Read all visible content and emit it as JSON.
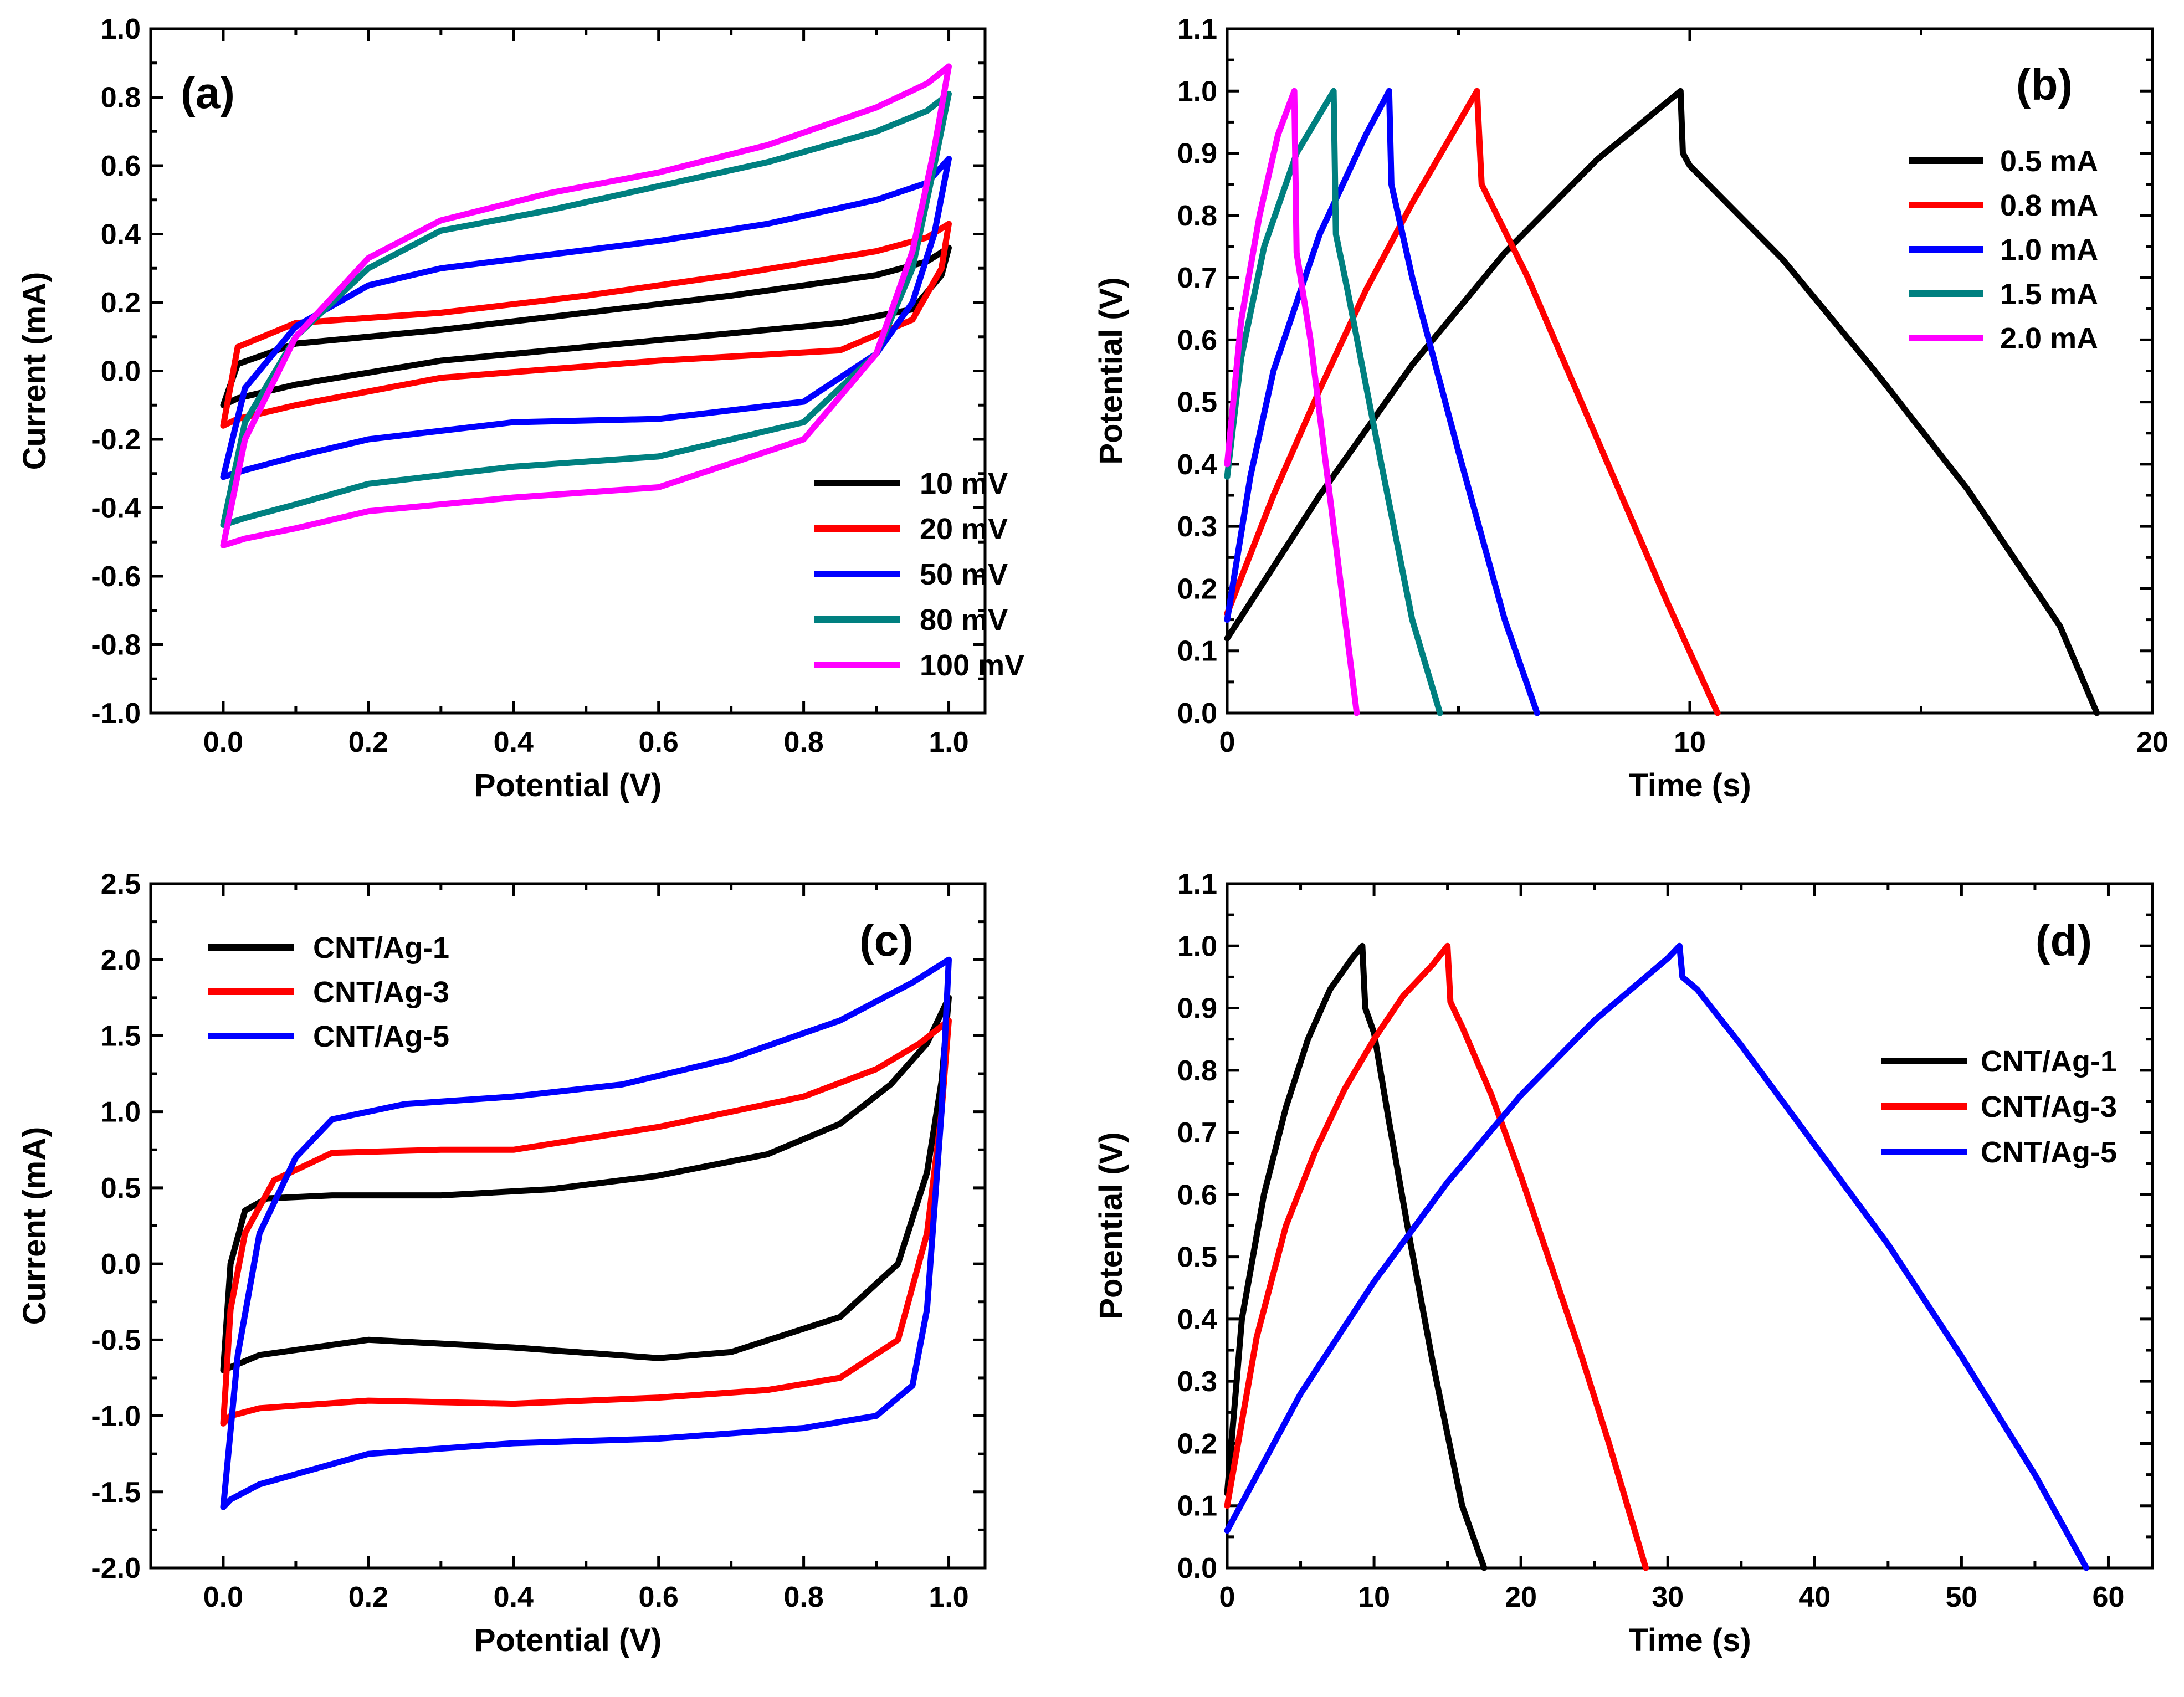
{
  "chart_data": [
    {
      "panel": "(a)",
      "type": "line",
      "xlabel": "Potential (V)",
      "ylabel": "Current (mA)",
      "xlim": [
        -0.1,
        1.05
      ],
      "ylim": [
        -1.0,
        1.0
      ],
      "xticks": [
        0.0,
        0.2,
        0.4,
        0.6,
        0.8,
        1.0
      ],
      "xtick_labels": [
        "0.0",
        "0.2",
        "0.4",
        "0.6",
        "0.8",
        "1.0"
      ],
      "yticks": [
        -1.0,
        -0.8,
        -0.6,
        -0.4,
        -0.2,
        0.0,
        0.2,
        0.4,
        0.6,
        0.8,
        1.0
      ],
      "ytick_labels": [
        "-1.0",
        "-0.8",
        "-0.6",
        "-0.4",
        "-0.2",
        "0.0",
        "0.2",
        "0.4",
        "0.6",
        "0.8",
        "1.0"
      ],
      "legend_position": "bottom-right",
      "series": [
        {
          "name": "10 mV",
          "color": "#000000",
          "x": [
            0.0,
            0.02,
            0.1,
            0.3,
            0.5,
            0.7,
            0.9,
            0.97,
            1.0,
            0.99,
            0.95,
            0.85,
            0.6,
            0.3,
            0.1,
            0.02,
            0.0
          ],
          "y": [
            -0.1,
            0.02,
            0.08,
            0.12,
            0.17,
            0.22,
            0.28,
            0.32,
            0.36,
            0.28,
            0.18,
            0.14,
            0.09,
            0.03,
            -0.04,
            -0.08,
            -0.1
          ]
        },
        {
          "name": "20 mV",
          "color": "#ff0000",
          "x": [
            0.0,
            0.02,
            0.1,
            0.3,
            0.5,
            0.7,
            0.9,
            0.97,
            1.0,
            0.99,
            0.95,
            0.85,
            0.6,
            0.3,
            0.1,
            0.02,
            0.0
          ],
          "y": [
            -0.16,
            0.07,
            0.14,
            0.17,
            0.22,
            0.28,
            0.35,
            0.39,
            0.43,
            0.3,
            0.15,
            0.06,
            0.03,
            -0.02,
            -0.1,
            -0.14,
            -0.16
          ]
        },
        {
          "name": "50 mV",
          "color": "#0000ff",
          "x": [
            0.0,
            0.03,
            0.1,
            0.2,
            0.3,
            0.45,
            0.6,
            0.75,
            0.9,
            0.97,
            1.0,
            0.98,
            0.95,
            0.9,
            0.8,
            0.6,
            0.4,
            0.2,
            0.1,
            0.03,
            0.0
          ],
          "y": [
            -0.31,
            -0.05,
            0.13,
            0.25,
            0.3,
            0.34,
            0.38,
            0.43,
            0.5,
            0.55,
            0.62,
            0.4,
            0.2,
            0.05,
            -0.09,
            -0.14,
            -0.15,
            -0.2,
            -0.25,
            -0.29,
            -0.31
          ]
        },
        {
          "name": "80 mV",
          "color": "#008080",
          "x": [
            0.0,
            0.03,
            0.1,
            0.2,
            0.3,
            0.45,
            0.6,
            0.75,
            0.9,
            0.97,
            1.0,
            0.98,
            0.95,
            0.9,
            0.8,
            0.6,
            0.4,
            0.2,
            0.1,
            0.03,
            0.0
          ],
          "y": [
            -0.45,
            -0.15,
            0.1,
            0.3,
            0.41,
            0.47,
            0.54,
            0.61,
            0.7,
            0.76,
            0.81,
            0.6,
            0.3,
            0.05,
            -0.15,
            -0.25,
            -0.28,
            -0.33,
            -0.39,
            -0.43,
            -0.45
          ]
        },
        {
          "name": "100 mV",
          "color": "#ff00ff",
          "x": [
            0.0,
            0.03,
            0.1,
            0.2,
            0.3,
            0.45,
            0.6,
            0.75,
            0.9,
            0.97,
            1.0,
            0.98,
            0.95,
            0.9,
            0.8,
            0.6,
            0.4,
            0.2,
            0.1,
            0.03,
            0.0
          ],
          "y": [
            -0.51,
            -0.2,
            0.1,
            0.33,
            0.44,
            0.52,
            0.58,
            0.66,
            0.77,
            0.84,
            0.89,
            0.65,
            0.35,
            0.05,
            -0.2,
            -0.34,
            -0.37,
            -0.41,
            -0.46,
            -0.49,
            -0.51
          ]
        }
      ]
    },
    {
      "panel": "(b)",
      "type": "line",
      "xlabel": "Time (s)",
      "ylabel": "Potential (V)",
      "xlim": [
        0,
        20
      ],
      "ylim": [
        0.0,
        1.1
      ],
      "xticks": [
        0,
        10,
        20
      ],
      "xtick_labels": [
        "0",
        "10",
        "20"
      ],
      "xminor": [
        5,
        15
      ],
      "yticks": [
        0.0,
        0.1,
        0.2,
        0.3,
        0.4,
        0.5,
        0.6,
        0.7,
        0.8,
        0.9,
        1.0,
        1.1
      ],
      "ytick_labels": [
        "0.0",
        "0.1",
        "0.2",
        "0.3",
        "0.4",
        "0.5",
        "0.6",
        "0.7",
        "0.8",
        "0.9",
        "1.0",
        "1.1"
      ],
      "legend_position": "top-right",
      "series": [
        {
          "name": "0.5 mA",
          "color": "#000000",
          "x": [
            0,
            2,
            4,
            6,
            8,
            9.8,
            9.85,
            10.0,
            12,
            14,
            16,
            18,
            18.8
          ],
          "y": [
            0.12,
            0.35,
            0.56,
            0.74,
            0.89,
            1.0,
            0.9,
            0.88,
            0.73,
            0.55,
            0.36,
            0.14,
            0.0
          ]
        },
        {
          "name": "0.8 mA",
          "color": "#ff0000",
          "x": [
            0,
            1,
            2,
            3,
            4,
            5.4,
            5.5,
            6.5,
            8,
            9.5,
            10.6
          ],
          "y": [
            0.16,
            0.35,
            0.52,
            0.68,
            0.82,
            1.0,
            0.85,
            0.7,
            0.44,
            0.18,
            0.0
          ]
        },
        {
          "name": "1.0 mA",
          "color": "#0000ff",
          "x": [
            0,
            0.5,
            1,
            2,
            3,
            3.5,
            3.55,
            4,
            5,
            6,
            6.7
          ],
          "y": [
            0.15,
            0.38,
            0.55,
            0.77,
            0.93,
            1.0,
            0.85,
            0.7,
            0.42,
            0.15,
            0.0
          ]
        },
        {
          "name": "1.5 mA",
          "color": "#008080",
          "x": [
            0,
            0.3,
            0.8,
            1.5,
            2.3,
            2.35,
            2.6,
            3.2,
            4.0,
            4.6
          ],
          "y": [
            0.38,
            0.57,
            0.75,
            0.9,
            1.0,
            0.77,
            0.68,
            0.45,
            0.15,
            0.0
          ]
        },
        {
          "name": "2.0 mA",
          "color": "#ff00ff",
          "x": [
            0,
            0.3,
            0.7,
            1.1,
            1.45,
            1.5,
            1.8,
            2.3,
            2.8
          ],
          "y": [
            0.4,
            0.63,
            0.8,
            0.93,
            1.0,
            0.74,
            0.6,
            0.3,
            0.0
          ]
        }
      ]
    },
    {
      "panel": "(c)",
      "type": "line",
      "xlabel": "Potential (V)",
      "ylabel": "Current (mA)",
      "xlim": [
        -0.1,
        1.05
      ],
      "ylim": [
        -2.0,
        2.5
      ],
      "xticks": [
        0.0,
        0.2,
        0.4,
        0.6,
        0.8,
        1.0
      ],
      "xtick_labels": [
        "0.0",
        "0.2",
        "0.4",
        "0.6",
        "0.8",
        "1.0"
      ],
      "yticks": [
        -2.0,
        -1.5,
        -1.0,
        -0.5,
        0.0,
        0.5,
        1.0,
        1.5,
        2.0,
        2.5
      ],
      "ytick_labels": [
        "-2.0",
        "-1.5",
        "-1.0",
        "-0.5",
        "0.0",
        "0.5",
        "1.0",
        "1.5",
        "2.0",
        "2.5"
      ],
      "legend_position": "top-left",
      "series": [
        {
          "name": "CNT/Ag-1",
          "color": "#000000",
          "x": [
            0.0,
            0.01,
            0.03,
            0.06,
            0.15,
            0.3,
            0.45,
            0.6,
            0.75,
            0.85,
            0.92,
            0.97,
            1.0,
            0.99,
            0.97,
            0.93,
            0.85,
            0.7,
            0.6,
            0.4,
            0.2,
            0.05,
            0.01,
            0.0
          ],
          "y": [
            -0.7,
            0.0,
            0.35,
            0.43,
            0.45,
            0.45,
            0.49,
            0.58,
            0.72,
            0.92,
            1.18,
            1.45,
            1.75,
            1.2,
            0.6,
            0.0,
            -0.35,
            -0.58,
            -0.62,
            -0.55,
            -0.5,
            -0.6,
            -0.68,
            -0.7
          ]
        },
        {
          "name": "CNT/Ag-3",
          "color": "#ff0000",
          "x": [
            0.0,
            0.01,
            0.03,
            0.07,
            0.15,
            0.3,
            0.4,
            0.6,
            0.8,
            0.9,
            0.96,
            1.0,
            0.99,
            0.97,
            0.93,
            0.85,
            0.75,
            0.6,
            0.4,
            0.2,
            0.05,
            0.01,
            0.0
          ],
          "y": [
            -1.05,
            -0.3,
            0.2,
            0.55,
            0.73,
            0.75,
            0.75,
            0.9,
            1.1,
            1.28,
            1.45,
            1.6,
            1.0,
            0.2,
            -0.5,
            -0.75,
            -0.83,
            -0.88,
            -0.92,
            -0.9,
            -0.95,
            -1.0,
            -1.05
          ]
        },
        {
          "name": "CNT/Ag-5",
          "color": "#0000ff",
          "x": [
            0.0,
            0.02,
            0.05,
            0.1,
            0.15,
            0.25,
            0.4,
            0.55,
            0.7,
            0.85,
            0.95,
            1.0,
            0.99,
            0.97,
            0.95,
            0.9,
            0.8,
            0.6,
            0.4,
            0.2,
            0.05,
            0.01,
            0.0
          ],
          "y": [
            -1.6,
            -0.6,
            0.2,
            0.7,
            0.95,
            1.05,
            1.1,
            1.18,
            1.35,
            1.6,
            1.85,
            2.0,
            1.0,
            -0.3,
            -0.8,
            -1.0,
            -1.08,
            -1.15,
            -1.18,
            -1.25,
            -1.45,
            -1.55,
            -1.6
          ]
        }
      ]
    },
    {
      "panel": "(d)",
      "type": "line",
      "xlabel": "Time (s)",
      "ylabel": "Potential (V)",
      "xlim": [
        0,
        63
      ],
      "ylim": [
        0.0,
        1.1
      ],
      "xticks": [
        0,
        10,
        20,
        30,
        40,
        50,
        60
      ],
      "xtick_labels": [
        "0",
        "10",
        "20",
        "30",
        "40",
        "50",
        "60"
      ],
      "xminor": [
        5,
        15,
        25,
        35,
        45,
        55
      ],
      "yticks": [
        0.0,
        0.1,
        0.2,
        0.3,
        0.4,
        0.5,
        0.6,
        0.7,
        0.8,
        0.9,
        1.0,
        1.1
      ],
      "ytick_labels": [
        "0.0",
        "0.1",
        "0.2",
        "0.3",
        "0.4",
        "0.5",
        "0.6",
        "0.7",
        "0.8",
        "0.9",
        "1.0",
        "1.1"
      ],
      "legend_position": "right",
      "series": [
        {
          "name": "CNT/Ag-1",
          "color": "#000000",
          "x": [
            0,
            1,
            2.5,
            4,
            5.5,
            7,
            8.5,
            9.2,
            9.4,
            10,
            11,
            12.5,
            14,
            16,
            17.5
          ],
          "y": [
            0.12,
            0.4,
            0.6,
            0.74,
            0.85,
            0.93,
            0.98,
            1.0,
            0.9,
            0.86,
            0.72,
            0.52,
            0.33,
            0.1,
            0.0
          ]
        },
        {
          "name": "CNT/Ag-3",
          "color": "#ff0000",
          "x": [
            0,
            2,
            4,
            6,
            8,
            10,
            12,
            14,
            15,
            15.2,
            16,
            18,
            20,
            22,
            24,
            26,
            28.5
          ],
          "y": [
            0.1,
            0.37,
            0.55,
            0.67,
            0.77,
            0.85,
            0.92,
            0.97,
            1.0,
            0.91,
            0.87,
            0.76,
            0.63,
            0.49,
            0.35,
            0.2,
            0.0
          ]
        },
        {
          "name": "CNT/Ag-5",
          "color": "#0000ff",
          "x": [
            0,
            5,
            10,
            15,
            20,
            25,
            28,
            30,
            30.8,
            31,
            32,
            35,
            40,
            45,
            50,
            55,
            58.5
          ],
          "y": [
            0.06,
            0.28,
            0.46,
            0.62,
            0.76,
            0.88,
            0.94,
            0.98,
            1.0,
            0.95,
            0.93,
            0.84,
            0.68,
            0.52,
            0.34,
            0.15,
            0.0
          ]
        }
      ]
    }
  ]
}
